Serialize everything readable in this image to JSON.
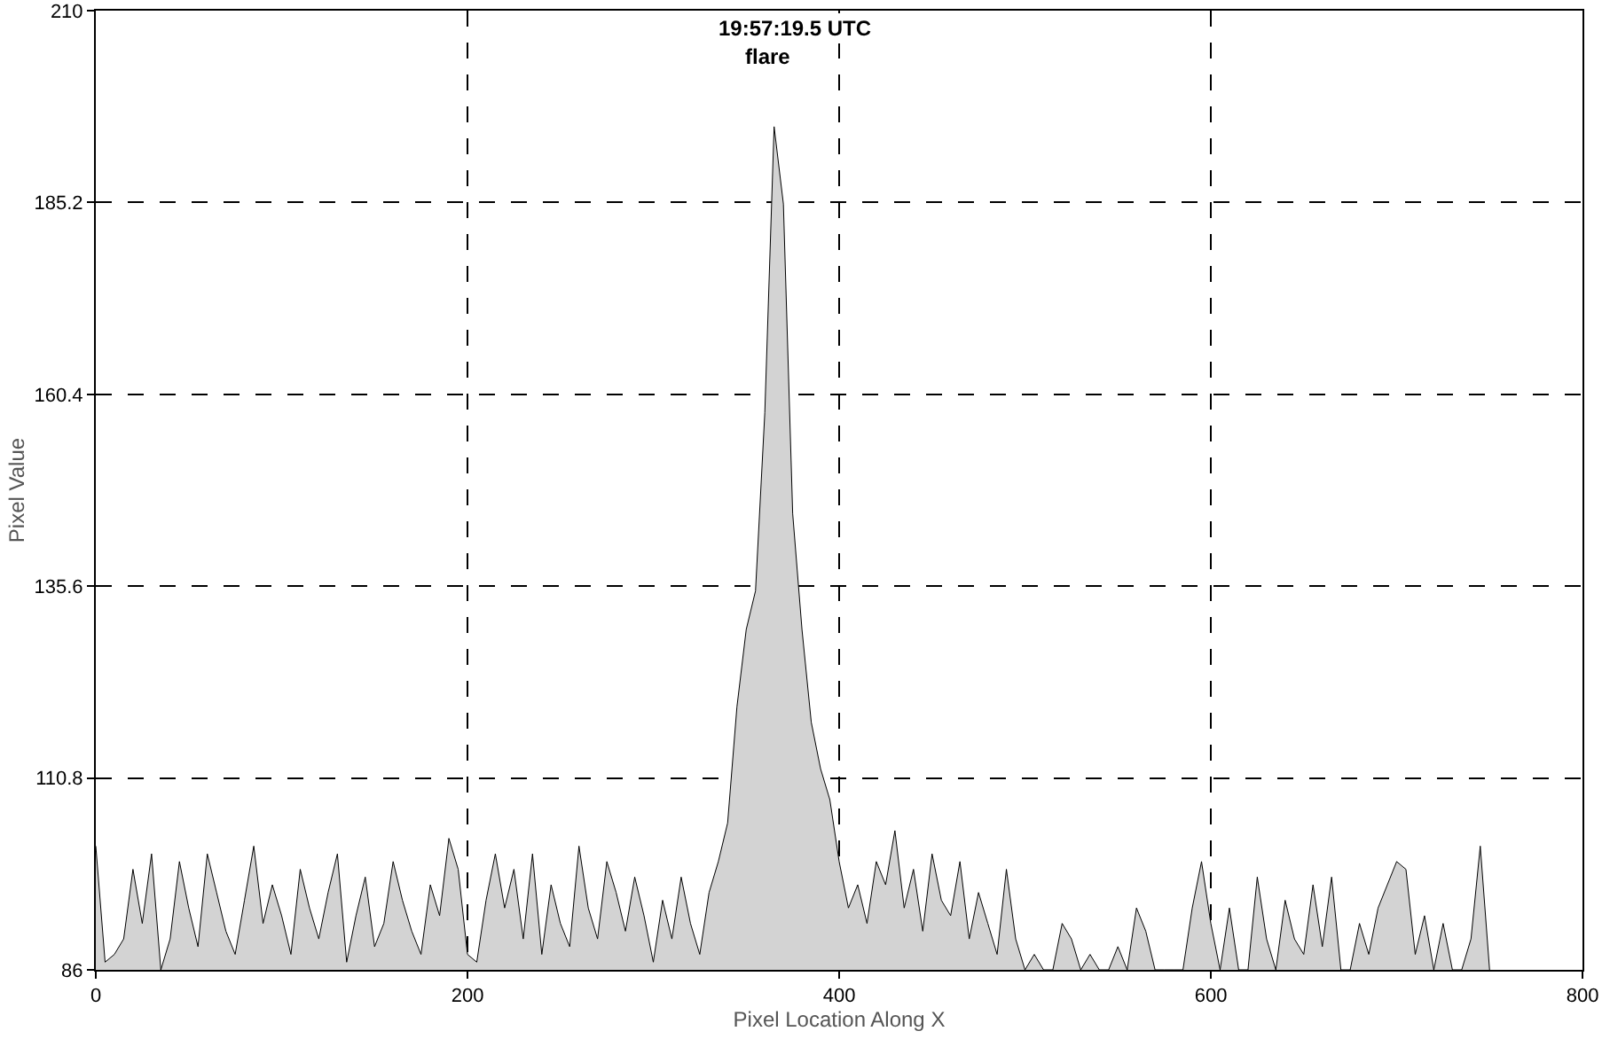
{
  "chart_data": {
    "type": "area",
    "title": "19:57:19.5 UTC",
    "subtitle": "flare",
    "xlabel": "Pixel Location Along X",
    "ylabel": "Pixel Value",
    "x": [
      0,
      5,
      10,
      15,
      20,
      25,
      30,
      35,
      40,
      45,
      50,
      55,
      60,
      65,
      70,
      75,
      80,
      85,
      90,
      95,
      100,
      105,
      110,
      115,
      120,
      125,
      130,
      135,
      140,
      145,
      150,
      155,
      160,
      165,
      170,
      175,
      180,
      185,
      190,
      195,
      200,
      205,
      210,
      215,
      220,
      225,
      230,
      235,
      240,
      245,
      250,
      255,
      260,
      265,
      270,
      275,
      280,
      285,
      290,
      295,
      300,
      305,
      310,
      315,
      320,
      325,
      330,
      335,
      340,
      345,
      350,
      355,
      360,
      365,
      370,
      375,
      380,
      385,
      390,
      395,
      400,
      405,
      410,
      415,
      420,
      425,
      430,
      435,
      440,
      445,
      450,
      455,
      460,
      465,
      470,
      475,
      480,
      485,
      490,
      495,
      500,
      505,
      510,
      515,
      520,
      525,
      530,
      535,
      540,
      545,
      550,
      555,
      560,
      565,
      570,
      575,
      580,
      585,
      590,
      595,
      600,
      605,
      610,
      615,
      620,
      625,
      630,
      635,
      640,
      645,
      650,
      655,
      660,
      665,
      670,
      675,
      680,
      685,
      690,
      695,
      700,
      705,
      710,
      715,
      720,
      725,
      730,
      735,
      740,
      745,
      750
    ],
    "series": [
      {
        "color": "#d3d3d3",
        "values": [
          102,
          87,
          88,
          90,
          99,
          92,
          101,
          86,
          90,
          100,
          94,
          89,
          101,
          96,
          91,
          88,
          95,
          102,
          92,
          97,
          93,
          88,
          99,
          94,
          90,
          96,
          101,
          87,
          93,
          98,
          89,
          92,
          100,
          95,
          91,
          88,
          97,
          93,
          103,
          99,
          88,
          87,
          95,
          101,
          94,
          99,
          90,
          101,
          88,
          97,
          92,
          89,
          102,
          94,
          90,
          100,
          96,
          91,
          98,
          93,
          87,
          95,
          90,
          98,
          92,
          88,
          96,
          100,
          105,
          120,
          130,
          135,
          158,
          195,
          185,
          145,
          130,
          118,
          112,
          108,
          100,
          94,
          97,
          92,
          100,
          97,
          104,
          94,
          99,
          91,
          101,
          95,
          93,
          100,
          90,
          96,
          92,
          88,
          99,
          90,
          86,
          88,
          86,
          86,
          92,
          90,
          86,
          88,
          86,
          86,
          89,
          86,
          94,
          91,
          86,
          86,
          86,
          86,
          94,
          100,
          92,
          86,
          94,
          86,
          86,
          98,
          90,
          86,
          95,
          90,
          88,
          97,
          89,
          98,
          86,
          86,
          92,
          88,
          94,
          97,
          100,
          99,
          88,
          93,
          86,
          92,
          86,
          86,
          90,
          102,
          86
        ]
      }
    ],
    "xlim": [
      0,
      800
    ],
    "xticks": [
      0,
      200,
      400,
      600,
      800
    ],
    "ylim": [
      86,
      210
    ],
    "yticks": [
      86,
      110.8,
      135.6,
      160.4,
      185.2,
      210
    ],
    "grid": true,
    "line_style": "solid"
  }
}
